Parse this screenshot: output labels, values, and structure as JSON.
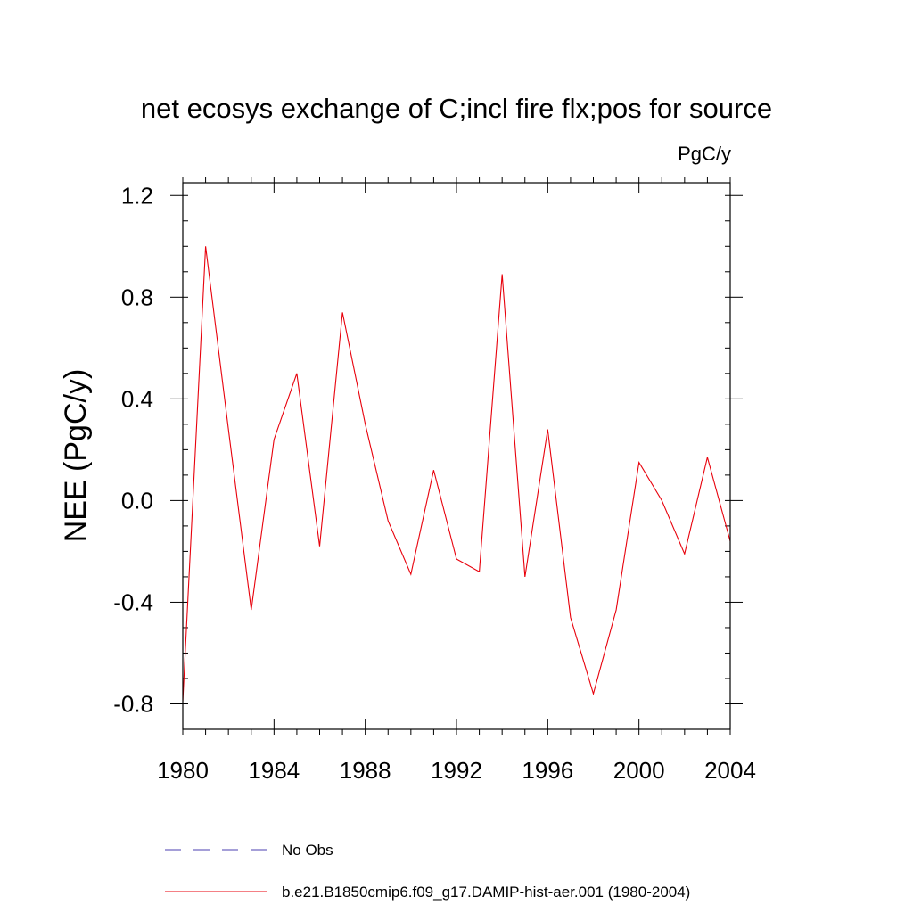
{
  "chart_data": {
    "type": "line",
    "title": "net ecosys exchange of C;incl fire flx;pos for source",
    "units": "PgC/y",
    "ylabel": "NEE  (PgC/y)",
    "xlabel": "",
    "xlim": [
      1980,
      2004
    ],
    "ylim": [
      -0.9,
      1.25
    ],
    "xticks": [
      1980,
      1984,
      1988,
      1992,
      1996,
      2000,
      2004
    ],
    "xtick_labels": [
      "1980",
      "1984",
      "1988",
      "1992",
      "1996",
      "2000",
      "2004"
    ],
    "yticks": [
      -0.8,
      -0.4,
      0.0,
      0.4,
      0.8,
      1.2
    ],
    "ytick_labels": [
      "-0.8",
      "-0.4",
      "0.0",
      "0.4",
      "0.8",
      "1.2"
    ],
    "grid": false,
    "legend_position": "bottom",
    "legend": [
      {
        "label": "No Obs",
        "color": "#4b3fb0",
        "style": "dashed"
      },
      {
        "label": "b.e21.B1850cmip6.f09_g17.DAMIP-hist-aer.001 (1980-2004)",
        "color": "#e8000b",
        "style": "solid"
      }
    ],
    "series": [
      {
        "name": "b.e21.B1850cmip6.f09_g17.DAMIP-hist-aer.001 (1980-2004)",
        "color": "#e8000b",
        "x": [
          1980,
          1981,
          1982,
          1983,
          1984,
          1985,
          1986,
          1987,
          1988,
          1989,
          1990,
          1991,
          1992,
          1993,
          1994,
          1995,
          1996,
          1997,
          1998,
          1999,
          2000,
          2001,
          2002,
          2003,
          2004
        ],
        "y": [
          -0.79,
          1.0,
          0.28,
          -0.43,
          0.24,
          0.5,
          -0.18,
          0.74,
          0.3,
          -0.08,
          -0.29,
          0.12,
          -0.23,
          -0.28,
          0.89,
          -0.3,
          0.28,
          -0.46,
          -0.76,
          -0.43,
          0.15,
          0.0,
          -0.21,
          0.17,
          -0.16
        ]
      }
    ]
  }
}
